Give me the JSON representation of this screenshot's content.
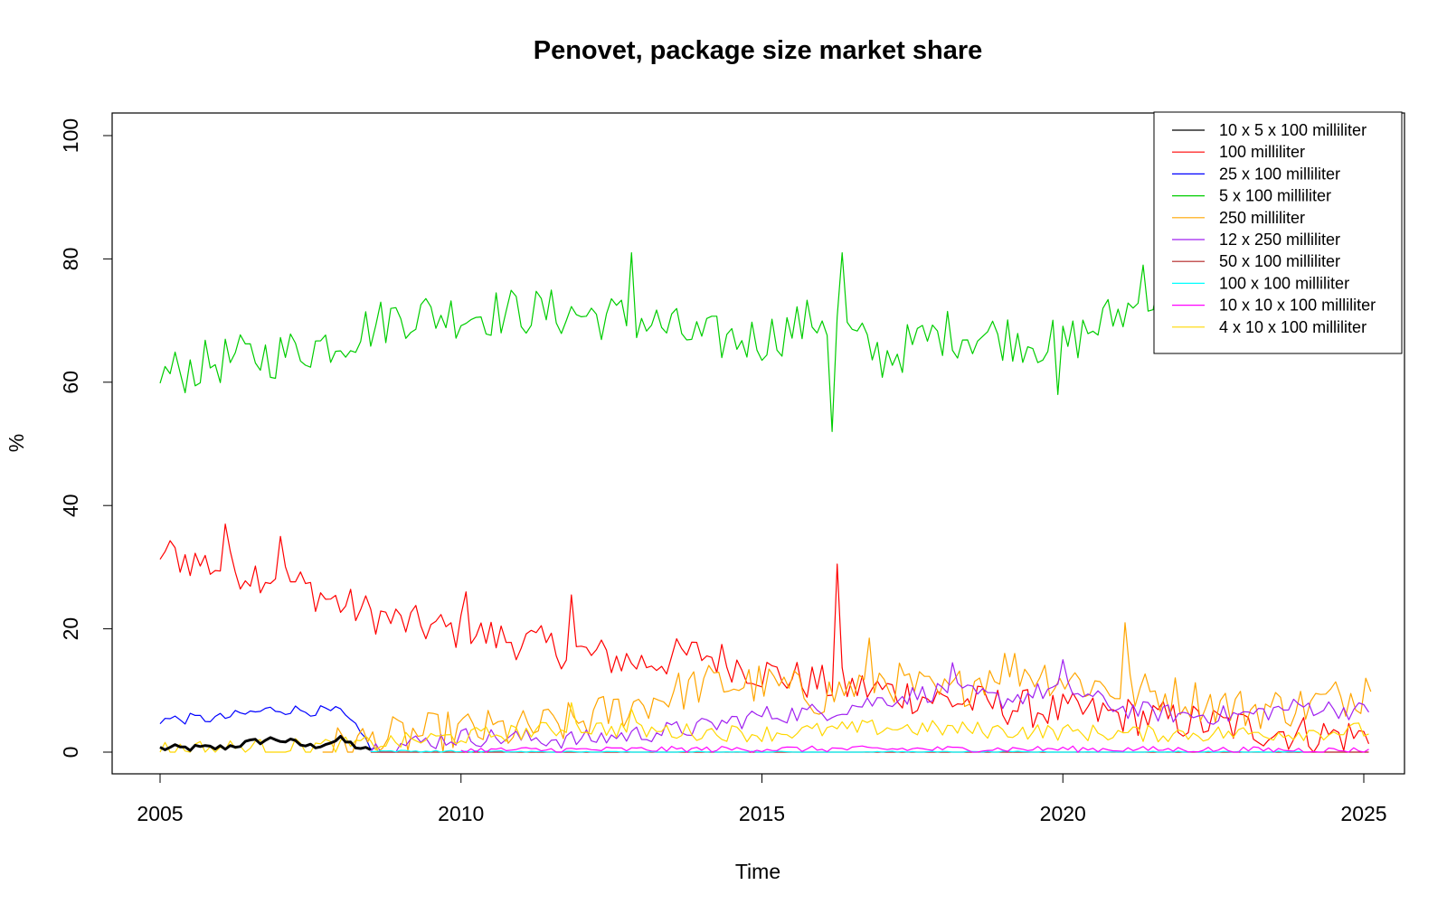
{
  "chart_data": {
    "type": "line",
    "title": "Penovet, package size market share",
    "xlabel": "Time",
    "ylabel": "%",
    "xlim": [
      2005,
      2025
    ],
    "ylim": [
      0,
      100
    ],
    "x_ticks": [
      2005,
      2010,
      2015,
      2020,
      2025
    ],
    "y_ticks": [
      0,
      20,
      40,
      60,
      80,
      100
    ],
    "legend_position": "top-right",
    "grid": false,
    "sampling": "monthly, 2005-01 to 2025-01",
    "series": [
      {
        "name": "10 x 5 x 100 milliliter",
        "color": "#000000",
        "line_width": 3,
        "start": 2005.0,
        "end": 2008.5,
        "anchors": [
          [
            2005.0,
            0.6
          ],
          [
            2006.0,
            0.7
          ],
          [
            2006.9,
            2.2
          ],
          [
            2007.5,
            0.9
          ],
          [
            2008.0,
            2.0
          ],
          [
            2008.5,
            0.0
          ]
        ],
        "noise": 0.6
      },
      {
        "name": "100 milliliter",
        "color": "#ff0000",
        "line_width": 1.2,
        "start": 2005.0,
        "end": 2025.1,
        "anchors": [
          [
            2005.0,
            32.5
          ],
          [
            2006.0,
            30.0
          ],
          [
            2007.0,
            28.5
          ],
          [
            2008.0,
            24.0
          ],
          [
            2009.0,
            21.0
          ],
          [
            2010.0,
            19.5
          ],
          [
            2011.0,
            18.0
          ],
          [
            2012.0,
            16.0
          ],
          [
            2013.0,
            14.5
          ],
          [
            2014.0,
            16.0
          ],
          [
            2015.0,
            13.0
          ],
          [
            2016.0,
            11.0
          ],
          [
            2017.0,
            10.0
          ],
          [
            2018.0,
            8.5
          ],
          [
            2019.0,
            7.5
          ],
          [
            2020.0,
            6.5
          ],
          [
            2021.0,
            6.0
          ],
          [
            2022.0,
            5.0
          ],
          [
            2023.0,
            4.0
          ],
          [
            2024.0,
            3.0
          ],
          [
            2025.1,
            2.5
          ]
        ],
        "noise": 3.2,
        "spikes": [
          [
            2006.1,
            37.0
          ],
          [
            2007.0,
            35.0
          ],
          [
            2010.1,
            26.0
          ],
          [
            2011.8,
            25.5
          ],
          [
            2016.25,
            30.5
          ]
        ]
      },
      {
        "name": "25 x 100 milliliter",
        "color": "#0000ff",
        "line_width": 1.2,
        "start": 2005.0,
        "end": 2008.6,
        "anchors": [
          [
            2005.0,
            5.3
          ],
          [
            2006.0,
            5.5
          ],
          [
            2006.9,
            7.0
          ],
          [
            2008.0,
            6.5
          ],
          [
            2008.6,
            0.0
          ]
        ],
        "noise": 0.9
      },
      {
        "name": "5 x 100 milliliter",
        "color": "#00cd00",
        "line_width": 1.2,
        "start": 2005.0,
        "end": 2025.1,
        "anchors": [
          [
            2005.0,
            61.0
          ],
          [
            2006.0,
            63.5
          ],
          [
            2007.0,
            64.5
          ],
          [
            2008.0,
            67.0
          ],
          [
            2009.0,
            71.0
          ],
          [
            2010.0,
            71.0
          ],
          [
            2011.0,
            71.5
          ],
          [
            2012.0,
            71.0
          ],
          [
            2013.0,
            70.0
          ],
          [
            2014.0,
            67.0
          ],
          [
            2015.0,
            67.0
          ],
          [
            2016.0,
            70.5
          ],
          [
            2017.0,
            64.0
          ],
          [
            2018.0,
            68.0
          ],
          [
            2019.0,
            67.5
          ],
          [
            2020.0,
            66.0
          ],
          [
            2021.0,
            71.5
          ],
          [
            2022.0,
            75.0
          ],
          [
            2023.0,
            76.0
          ],
          [
            2024.0,
            75.5
          ],
          [
            2025.1,
            75.0
          ]
        ],
        "noise": 4.0,
        "spikes": [
          [
            2012.8,
            81.0
          ],
          [
            2016.2,
            52.0
          ],
          [
            2016.3,
            81.0
          ],
          [
            2019.9,
            58.0
          ],
          [
            2021.3,
            79.0
          ]
        ]
      },
      {
        "name": "250 milliliter",
        "color": "#ffa500",
        "line_width": 1.2,
        "start": 2007.7,
        "end": 2025.1,
        "anchors": [
          [
            2007.7,
            0.5
          ],
          [
            2009.0,
            2.5
          ],
          [
            2010.0,
            3.5
          ],
          [
            2011.0,
            3.5
          ],
          [
            2012.0,
            5.0
          ],
          [
            2013.0,
            8.0
          ],
          [
            2014.0,
            11.0
          ],
          [
            2015.0,
            11.0
          ],
          [
            2016.0,
            9.0
          ],
          [
            2017.0,
            12.0
          ],
          [
            2018.0,
            9.0
          ],
          [
            2019.0,
            14.0
          ],
          [
            2020.0,
            12.0
          ],
          [
            2021.0,
            10.0
          ],
          [
            2022.0,
            9.0
          ],
          [
            2023.0,
            7.0
          ],
          [
            2024.0,
            7.5
          ],
          [
            2025.1,
            10.0
          ]
        ],
        "noise": 3.5,
        "spikes": [
          [
            2016.8,
            18.5
          ],
          [
            2021.0,
            21.0
          ],
          [
            2025.05,
            12.0
          ]
        ]
      },
      {
        "name": "12 x 250 milliliter",
        "color": "#a020f0",
        "line_width": 1.2,
        "start": 2008.5,
        "end": 2025.1,
        "anchors": [
          [
            2008.5,
            0.5
          ],
          [
            2010.0,
            2.5
          ],
          [
            2012.0,
            2.0
          ],
          [
            2014.0,
            4.0
          ],
          [
            2015.0,
            6.0
          ],
          [
            2016.0,
            6.5
          ],
          [
            2017.0,
            8.5
          ],
          [
            2018.0,
            10.0
          ],
          [
            2019.0,
            8.5
          ],
          [
            2020.0,
            10.5
          ],
          [
            2021.0,
            7.0
          ],
          [
            2022.0,
            6.0
          ],
          [
            2023.0,
            6.0
          ],
          [
            2024.0,
            7.5
          ],
          [
            2025.1,
            6.5
          ]
        ],
        "noise": 1.6,
        "spikes": [
          [
            2020.0,
            15.0
          ],
          [
            2018.2,
            14.5
          ]
        ]
      },
      {
        "name": "50 x 100 milliliter",
        "color": "#b22222",
        "line_width": 1.2,
        "start": 2008.5,
        "end": 2025.1,
        "anchors": [
          [
            2008.5,
            0.0
          ],
          [
            2024.0,
            0.0
          ],
          [
            2025.1,
            0.0
          ]
        ],
        "noise": 0.0
      },
      {
        "name": "100 x 100 milliliter",
        "color": "#00ffff",
        "line_width": 1.2,
        "start": 2008.5,
        "end": 2024.0,
        "anchors": [
          [
            2008.5,
            0.2
          ],
          [
            2012.0,
            0.0
          ],
          [
            2024.0,
            0.0
          ]
        ],
        "noise": 0.15
      },
      {
        "name": "10 x 10 x 100 milliliter",
        "color": "#ff00ff",
        "line_width": 1.2,
        "start": 2010.0,
        "end": 2025.1,
        "anchors": [
          [
            2010.0,
            0.3
          ],
          [
            2015.0,
            0.5
          ],
          [
            2020.0,
            0.5
          ],
          [
            2025.1,
            0.3
          ]
        ],
        "noise": 0.5
      },
      {
        "name": "4 x 10 x 100 milliliter",
        "color": "#ffd700",
        "line_width": 1.2,
        "start": 2005.0,
        "end": 2025.1,
        "anchors": [
          [
            2005.0,
            0.5
          ],
          [
            2008.0,
            1.0
          ],
          [
            2010.0,
            2.5
          ],
          [
            2012.0,
            4.0
          ],
          [
            2013.0,
            3.5
          ],
          [
            2015.0,
            3.0
          ],
          [
            2017.0,
            4.0
          ],
          [
            2019.0,
            3.5
          ],
          [
            2021.0,
            3.0
          ],
          [
            2023.0,
            3.0
          ],
          [
            2025.1,
            3.5
          ]
        ],
        "noise": 1.4,
        "spikes": [
          [
            2011.8,
            8.0
          ],
          [
            2012.8,
            7.0
          ]
        ]
      }
    ]
  }
}
